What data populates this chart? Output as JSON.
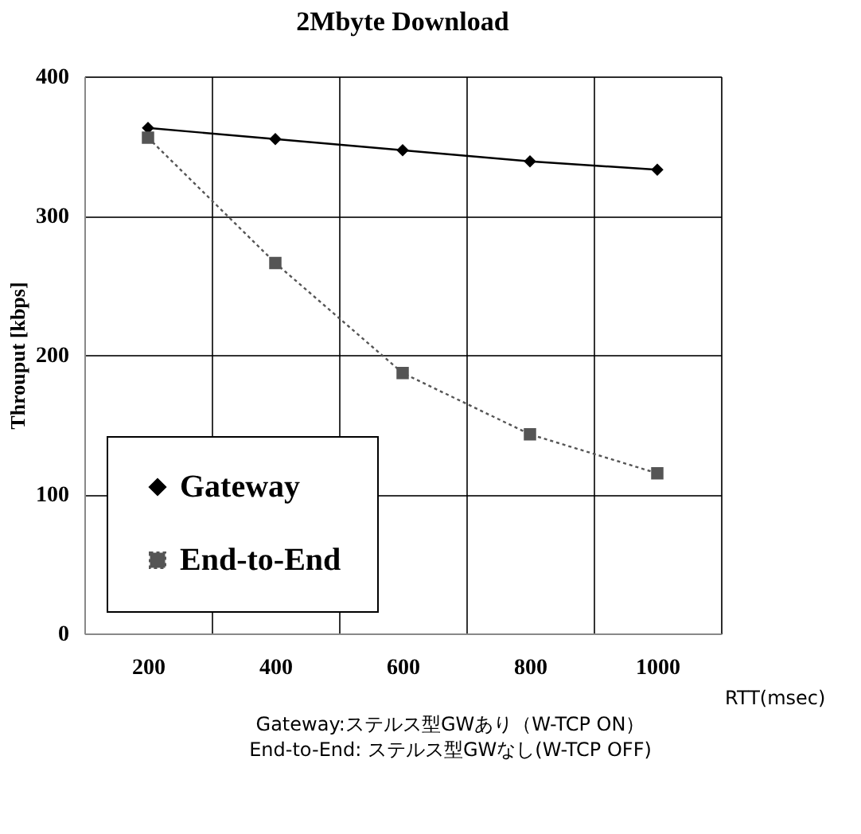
{
  "chart_data": {
    "type": "line",
    "title": "2Mbyte Download",
    "xlabel": "RTT(msec)",
    "ylabel": "Throuput [kbps]",
    "categories": [
      "200",
      "400",
      "600",
      "800",
      "1000"
    ],
    "series": [
      {
        "name": "Gateway",
        "color": "#000000",
        "values": [
          363,
          355,
          347,
          339,
          333
        ],
        "marker": "diamond",
        "line_style": "solid"
      },
      {
        "name": "End-to-End",
        "color": "#555555",
        "values": [
          356,
          266,
          187,
          143,
          115
        ],
        "marker": "square",
        "line_style": "dotted"
      }
    ],
    "ylim": [
      0,
      400
    ],
    "yticks": [
      0,
      100,
      200,
      300,
      400
    ],
    "grid": true,
    "legend": "bottom left",
    "annotations": [
      "Gateway:ステルス型GWあり（W-TCP ON）",
      "End-to-End: ステルス型GWなし(W-TCP OFF)"
    ]
  }
}
